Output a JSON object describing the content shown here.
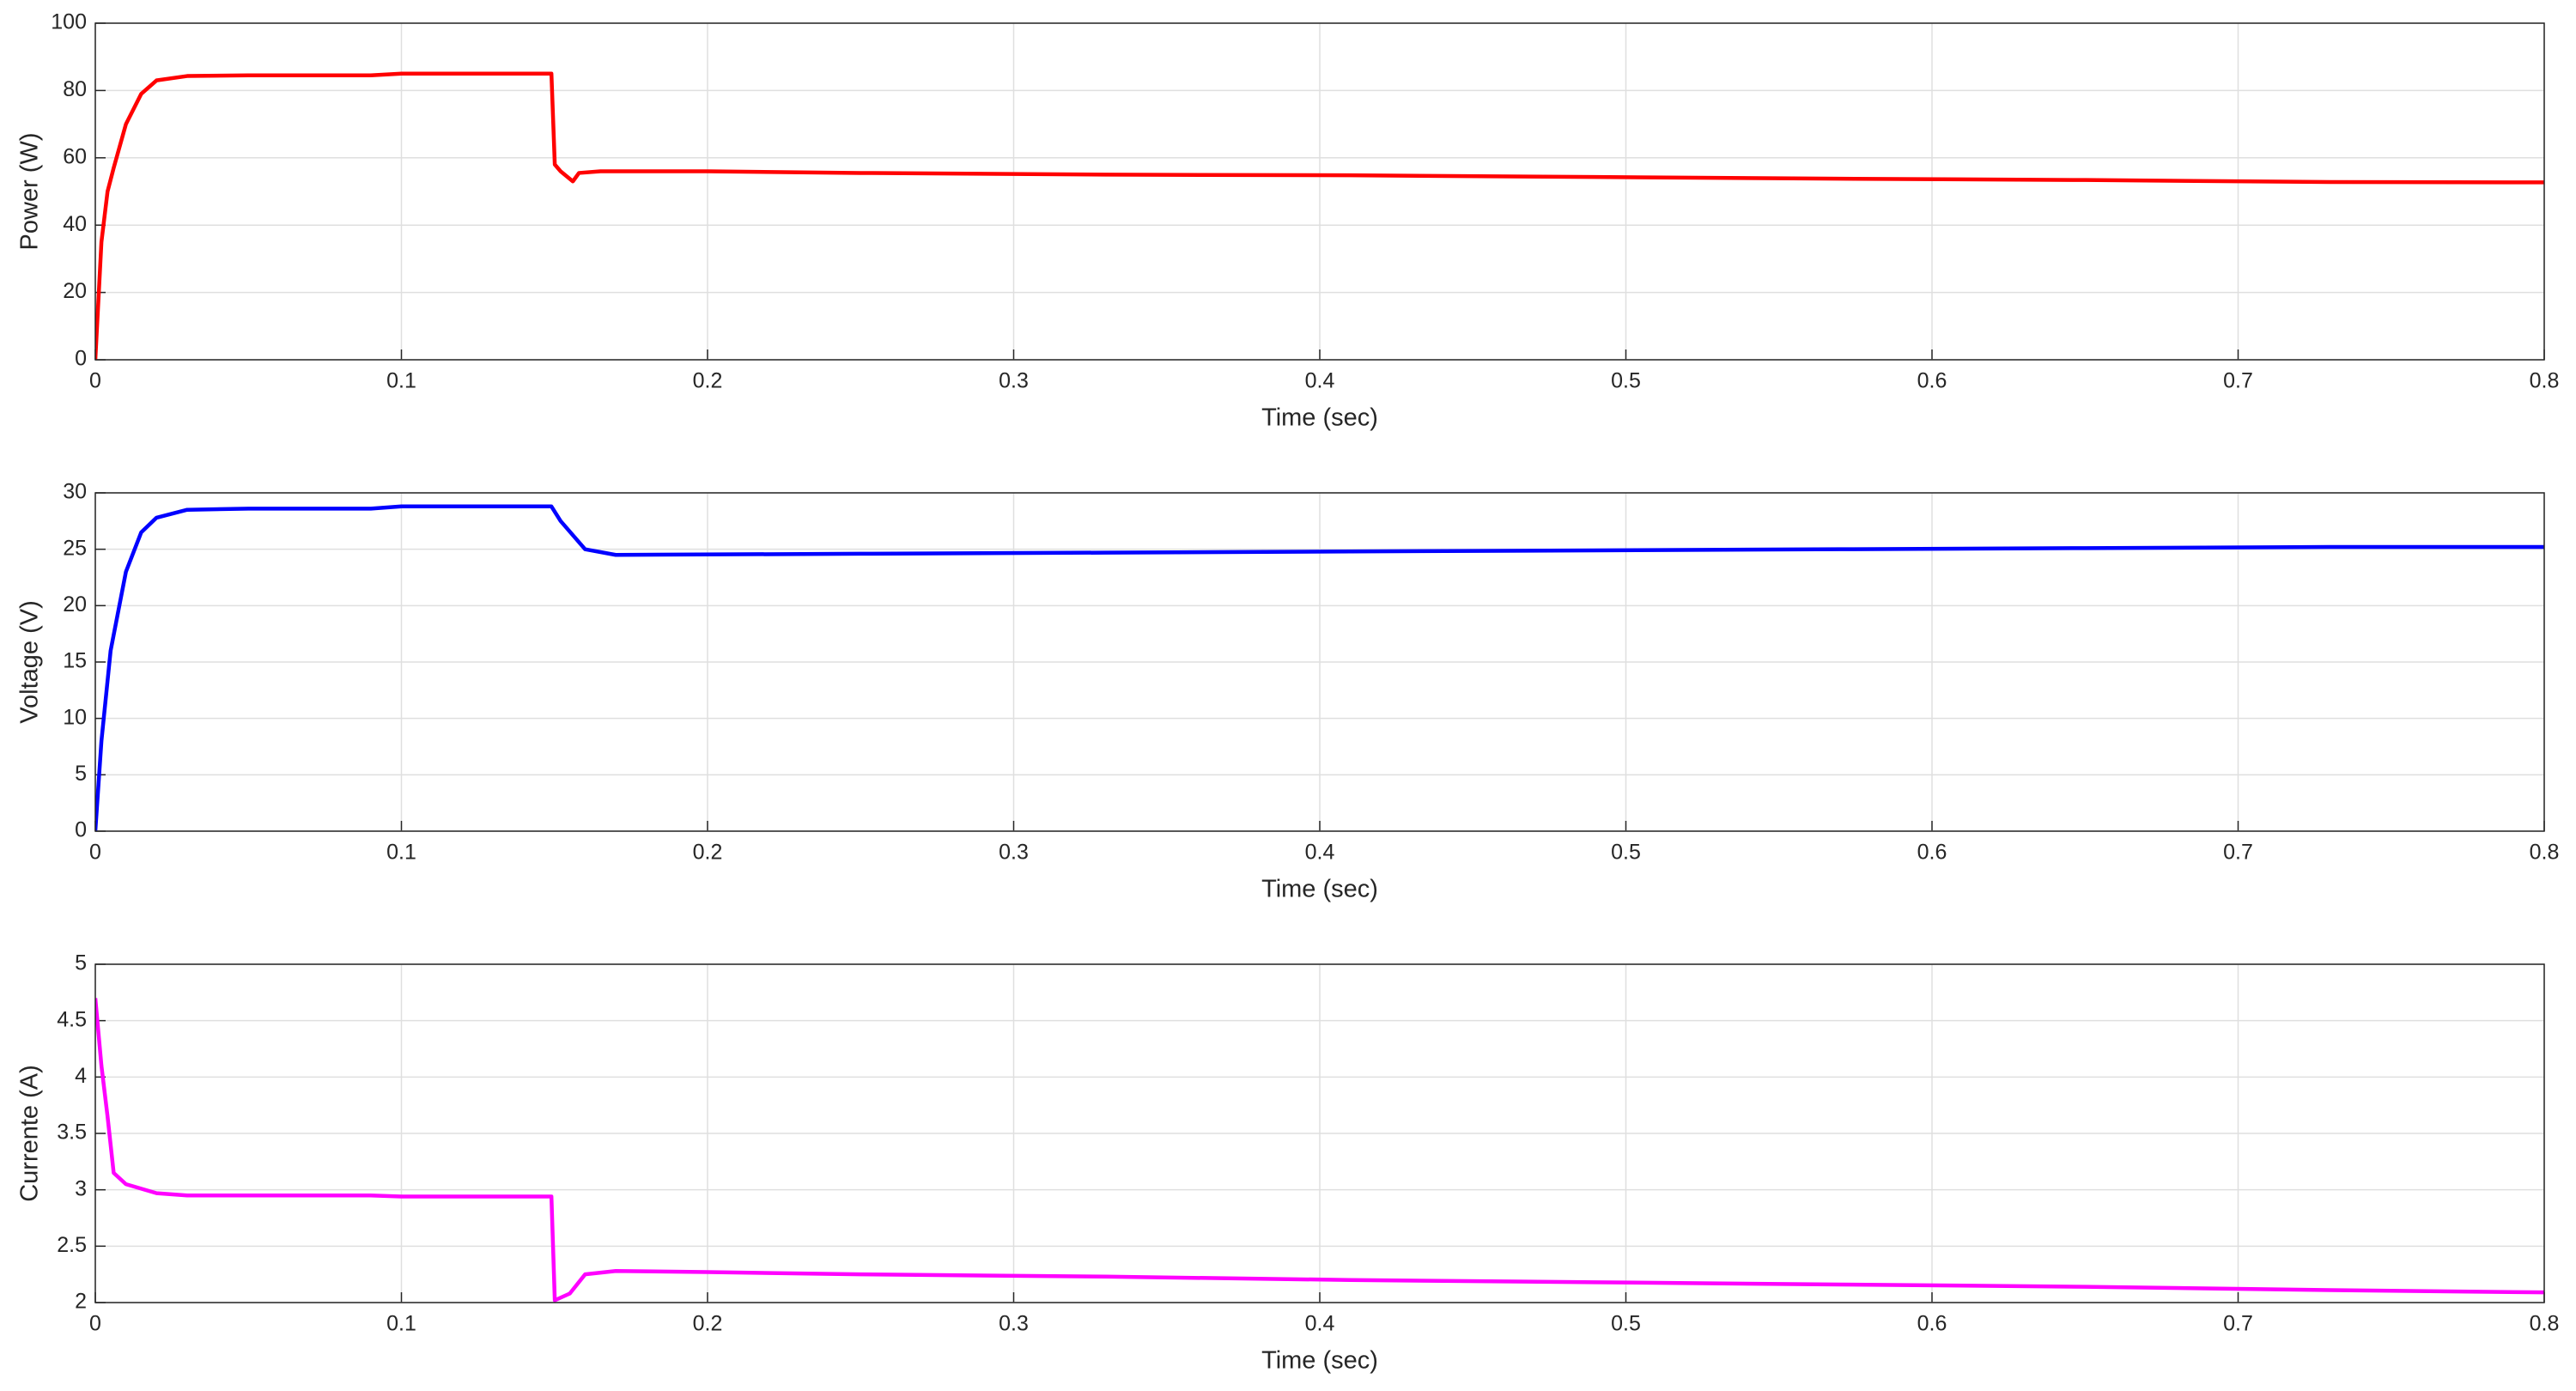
{
  "chart_data": [
    {
      "type": "line",
      "xlabel": "Time (sec)",
      "ylabel": "Power (W)",
      "x": [
        0,
        0.002,
        0.004,
        0.006,
        0.01,
        0.015,
        0.02,
        0.03,
        0.05,
        0.09,
        0.1,
        0.149,
        0.1501,
        0.152,
        0.156,
        0.158,
        0.165,
        0.2,
        0.25,
        0.33,
        0.41,
        0.49,
        0.57,
        0.65,
        0.73,
        0.8
      ],
      "series": [
        {
          "color": "#ff0000",
          "values": [
            0,
            35,
            50,
            57,
            70,
            79,
            83,
            84.3,
            84.5,
            84.5,
            85,
            85,
            58,
            56,
            53,
            55.5,
            56,
            56,
            55.5,
            55,
            54.8,
            54.3,
            53.8,
            53.4,
            52.8,
            52.7
          ]
        }
      ],
      "xlim": [
        0,
        0.8
      ],
      "xticks": [
        0,
        0.1,
        0.2,
        0.3,
        0.4,
        0.5,
        0.6,
        0.7,
        0.8
      ],
      "ylim": [
        0,
        100
      ],
      "yticks": [
        0,
        20,
        40,
        60,
        80,
        100
      ],
      "grid": true
    },
    {
      "type": "line",
      "xlabel": "Time (sec)",
      "ylabel": "Voltage (V)",
      "x": [
        0,
        0.002,
        0.005,
        0.01,
        0.015,
        0.02,
        0.03,
        0.05,
        0.09,
        0.1,
        0.149,
        0.152,
        0.16,
        0.17,
        0.25,
        0.33,
        0.41,
        0.49,
        0.57,
        0.65,
        0.73,
        0.8
      ],
      "series": [
        {
          "color": "#0000ff",
          "values": [
            0,
            8,
            16,
            23,
            26.5,
            27.8,
            28.5,
            28.6,
            28.6,
            28.8,
            28.8,
            27.5,
            25,
            24.5,
            24.6,
            24.7,
            24.8,
            24.9,
            25,
            25.1,
            25.2,
            25.2
          ]
        }
      ],
      "xlim": [
        0,
        0.8
      ],
      "xticks": [
        0,
        0.1,
        0.2,
        0.3,
        0.4,
        0.5,
        0.6,
        0.7,
        0.8
      ],
      "ylim": [
        0,
        30
      ],
      "yticks": [
        0,
        5,
        10,
        15,
        20,
        25,
        30
      ],
      "grid": true
    },
    {
      "type": "line",
      "xlabel": "Time (sec)",
      "ylabel": "Currente (A)",
      "x": [
        0,
        0.002,
        0.004,
        0.006,
        0.01,
        0.02,
        0.03,
        0.09,
        0.1,
        0.149,
        0.1501,
        0.155,
        0.16,
        0.17,
        0.2,
        0.25,
        0.33,
        0.41,
        0.49,
        0.57,
        0.65,
        0.73,
        0.8
      ],
      "series": [
        {
          "color": "#ff00ff",
          "values": [
            4.7,
            4.1,
            3.65,
            3.15,
            3.05,
            2.97,
            2.95,
            2.95,
            2.94,
            2.94,
            2.02,
            2.08,
            2.25,
            2.28,
            2.27,
            2.25,
            2.23,
            2.2,
            2.18,
            2.16,
            2.14,
            2.11,
            2.09
          ]
        }
      ],
      "xlim": [
        0,
        0.8
      ],
      "xticks": [
        0,
        0.1,
        0.2,
        0.3,
        0.4,
        0.5,
        0.6,
        0.7,
        0.8
      ],
      "ylim": [
        2,
        5
      ],
      "yticks": [
        2,
        2.5,
        3,
        3.5,
        4,
        4.5,
        5
      ],
      "grid": true
    }
  ]
}
